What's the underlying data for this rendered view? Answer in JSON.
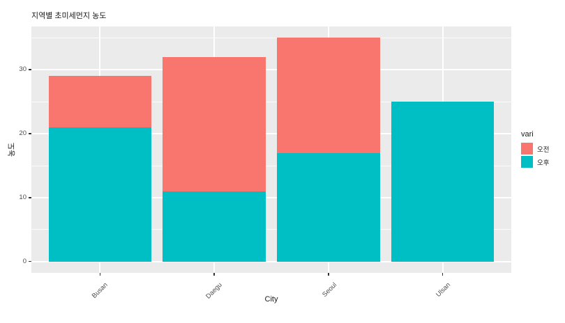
{
  "chart_data": {
    "type": "bar",
    "stacked": true,
    "title": "지역별 초미세먼지 농도",
    "xlabel": "City",
    "ylabel": "농도",
    "categories": [
      "Busan",
      "Daegu",
      "Seoul",
      "Ulsan"
    ],
    "series": [
      {
        "name": "오전",
        "color": "#F8766D",
        "values": [
          8,
          21,
          18,
          0
        ]
      },
      {
        "name": "오후",
        "color": "#00BFC4",
        "values": [
          21,
          11,
          17,
          25
        ]
      }
    ],
    "stack_totals": [
      29,
      32,
      35,
      25
    ],
    "y_ticks": [
      0,
      10,
      20,
      30
    ],
    "y_minor_ticks": [
      5,
      15,
      25,
      35
    ],
    "ylim": [
      -1.75,
      36.75
    ],
    "bar_width_ratio": 0.9,
    "category_expand": 0.6,
    "legend": {
      "title": "vari",
      "position": "right"
    },
    "colors": {
      "panel_bg": "#EBEBEB",
      "grid": "#FFFFFF",
      "tick_text": "#4D4D4D",
      "title_text": "#1A1A1A"
    }
  }
}
